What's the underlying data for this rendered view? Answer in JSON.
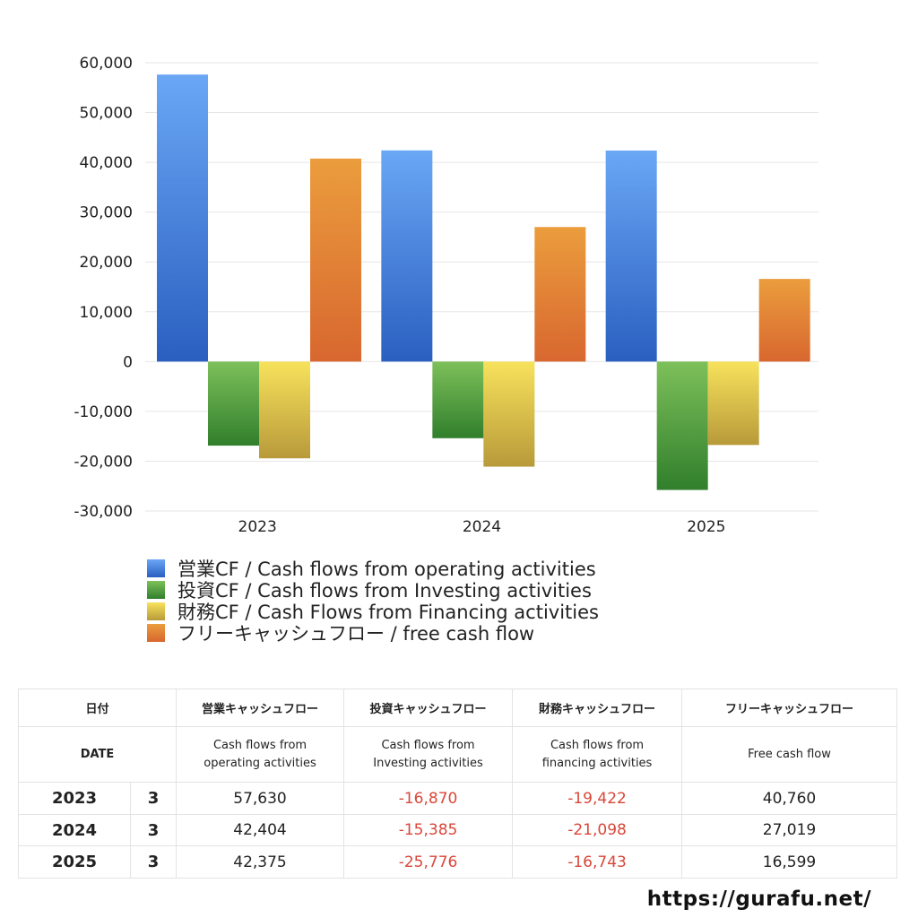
{
  "chart_data": {
    "type": "bar",
    "categories": [
      "2023",
      "2024",
      "2025"
    ],
    "series": [
      {
        "name": "営業CF / Cash flows from operating activities",
        "values": [
          57630,
          42404,
          42375
        ]
      },
      {
        "name": "投資CF / Cash flows from Investing activities",
        "values": [
          -16870,
          -15385,
          -25776
        ]
      },
      {
        "name": "財務CF / Cash Flows from Financing activities",
        "values": [
          -19422,
          -21098,
          -16743
        ]
      },
      {
        "name": "フリーキャッシュフロー / free cash flow",
        "values": [
          40760,
          27019,
          16599
        ]
      }
    ],
    "ylim": [
      -30000,
      60000
    ],
    "yticks": [
      60000,
      50000,
      40000,
      30000,
      20000,
      10000,
      0,
      -10000,
      -20000,
      -30000
    ],
    "ytick_labels": [
      "60,000",
      "50,000",
      "40,000",
      "30,000",
      "20,000",
      "10,000",
      "0",
      "-10,000",
      "-20,000",
      "-30,000"
    ],
    "grid": true,
    "legend_position": "bottom",
    "title": "",
    "xlabel": "",
    "ylabel": ""
  },
  "colors": {
    "operating": [
      "#6aa7f5",
      "#2a5fc0"
    ],
    "investing": [
      "#7dc05a",
      "#317f2c"
    ],
    "financing": [
      "#f7e25c",
      "#b89a3a"
    ],
    "free": [
      "#eb9d3d",
      "#d8672f"
    ],
    "negative_text": "#d9473a",
    "grid": "#e6e6e6"
  },
  "table": {
    "headers_jp": [
      "日付",
      "営業キャッシュフロー",
      "投資キャッシュフロー",
      "財務キャッシュフロー",
      "フリーキャッシュフロー"
    ],
    "headers_en": {
      "date": "DATE",
      "operating_1": "Cash flows from",
      "operating_2": "operating activities",
      "investing_1": "Cash flows from",
      "investing_2": "Investing activities",
      "financing_1": "Cash flows from",
      "financing_2": "financing activities",
      "free": "Free cash flow"
    },
    "rows": [
      {
        "year": "2023",
        "month": "3",
        "operating": "57,630",
        "investing": "-16,870",
        "financing": "-19,422",
        "free": "40,760"
      },
      {
        "year": "2024",
        "month": "3",
        "operating": "42,404",
        "investing": "-15,385",
        "financing": "-21,098",
        "free": "27,019"
      },
      {
        "year": "2025",
        "month": "3",
        "operating": "42,375",
        "investing": "-25,776",
        "financing": "-16,743",
        "free": "16,599"
      }
    ]
  },
  "footer": {
    "url": "https://gurafu.net/"
  }
}
